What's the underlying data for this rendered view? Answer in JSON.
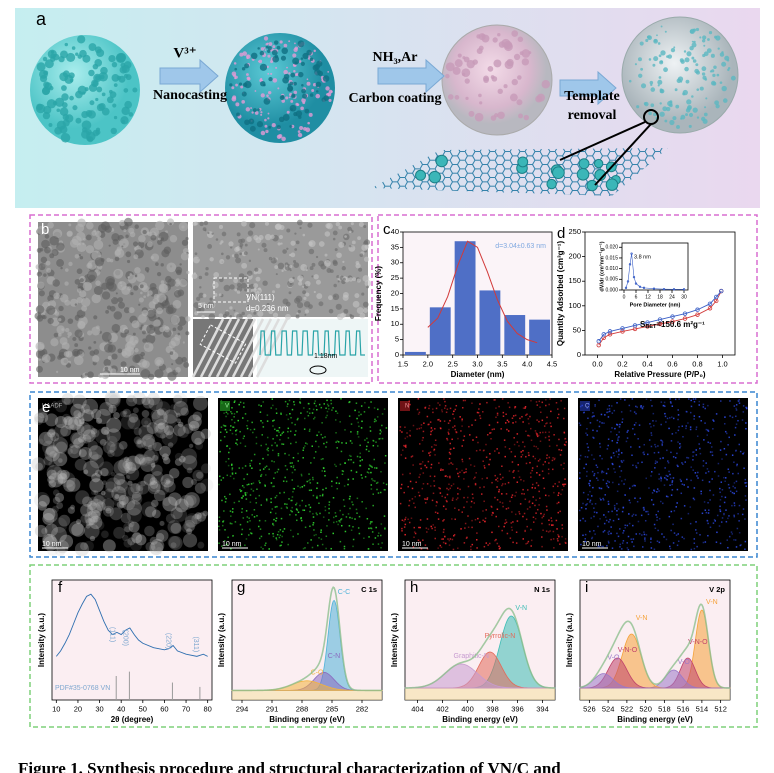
{
  "figure": {
    "scheme": {
      "label": "a",
      "step1_top": "V³⁺",
      "step1_bottom": "Nanocasting",
      "step2_top": "NH₃,Ar",
      "step2_bottom": "Carbon coating",
      "step3": [
        "Template",
        "removal"
      ]
    },
    "tem": {
      "label": "b",
      "scale_left": "10 nm",
      "scale_hr": "5 nm",
      "plane": "VN(111)",
      "d_spacing": "d=0.236 nm",
      "profile": "1.18nm"
    },
    "eds": {
      "label": "e",
      "maps": [
        {
          "title": "HAADF",
          "scale": "10 nm"
        },
        {
          "title": "V",
          "scale": "10 nm"
        },
        {
          "title": "N",
          "scale": "10 nm"
        },
        {
          "title": "C",
          "scale": "10 nm"
        }
      ]
    },
    "caption": "Figure 1. Synthesis procedure and structural characterization of VN/C and"
  },
  "chart_data": [
    {
      "type": "histogram",
      "label": "c",
      "xlabel": "Diameter (nm)",
      "ylabel": "Frequency (%)",
      "note": "d=3.04±0.63 nm",
      "color": "#4f6fc6",
      "bins": [
        1.5,
        2.0,
        2.5,
        3.0,
        3.5,
        4.0,
        4.5
      ],
      "values": [
        1,
        15.5,
        37,
        21,
        13,
        11.5
      ],
      "fit": {
        "color": "#d23a3a",
        "x": [
          2.0,
          2.2,
          2.4,
          2.6,
          2.8,
          3.0,
          3.2,
          3.4,
          3.6,
          3.8,
          4.0,
          4.2
        ],
        "values": [
          9,
          12,
          19,
          29,
          37,
          35,
          27,
          18,
          11,
          7,
          5,
          4
        ]
      },
      "xlim": [
        1.5,
        4.5
      ],
      "xticks": [
        1.5,
        {
          "value": 2,
          "label": "2.0"
        },
        2.5,
        {
          "value": 3,
          "label": "3.0"
        },
        3.5,
        {
          "value": 4,
          "label": "4.0"
        },
        4.5
      ],
      "ylim": [
        0,
        40
      ],
      "yticks": [
        0,
        5,
        10,
        15,
        20,
        25,
        30,
        35,
        40
      ]
    },
    {
      "type": "line",
      "label": "d",
      "xlabel": "Relative Pressure (P/P₀)",
      "ylabel": "Quantity Adsorbed (cm³g⁻¹)",
      "note": [
        "S",
        "BET",
        "=150.6 m²g⁻¹"
      ],
      "x": [
        0.01,
        0.05,
        0.1,
        0.2,
        0.3,
        0.4,
        0.5,
        0.6,
        0.7,
        0.8,
        0.9,
        0.95,
        0.99
      ],
      "series": [
        {
          "color": "#d23a3a",
          "values": [
            20,
            35,
            42,
            48,
            53,
            58,
            63,
            68,
            74,
            82,
            95,
            110,
            130
          ]
        },
        {
          "color": "#3a5fc6",
          "values": [
            28,
            42,
            48,
            54,
            60,
            66,
            72,
            78,
            84,
            92,
            104,
            118,
            130
          ]
        }
      ],
      "xlim": [
        -0.1,
        1.1
      ],
      "xticks": [
        {
          "value": 0,
          "label": "0.0"
        },
        0.2,
        0.4,
        0.6,
        0.8,
        {
          "value": 1,
          "label": "1.0"
        }
      ],
      "ylim": [
        0,
        250
      ],
      "yticks": [
        0,
        50,
        100,
        150,
        200,
        250
      ]
    },
    {
      "type": "line",
      "xlabel": "Pore Diameter (nm)",
      "ylabel": "dV/dr (cm³nm⁻¹g⁻¹)",
      "note": "3.8 nm",
      "x": [
        1,
        2,
        3,
        3.8,
        5,
        6,
        8,
        10,
        15,
        20,
        25,
        30
      ],
      "series": [
        {
          "color": "#3a5fc6",
          "values": [
            0.001,
            0.004,
            0.012,
            0.017,
            0.006,
            0.003,
            0.0015,
            0.001,
            0.0006,
            0.0004,
            0.0003,
            0.0003
          ]
        }
      ],
      "xlim": [
        -1,
        32
      ],
      "xticks": [
        0,
        6,
        12,
        18,
        24,
        30
      ],
      "ylim": [
        0,
        0.022
      ],
      "yticks": [
        {
          "value": 0,
          "label": "0.000"
        },
        {
          "value": 0.005,
          "label": "0.005"
        },
        {
          "value": 0.01,
          "label": "0.010"
        },
        {
          "value": 0.015,
          "label": "0.015"
        },
        {
          "value": 0.02,
          "label": "0.020"
        }
      ]
    },
    {
      "type": "line",
      "label": "f",
      "xlabel": "2θ (degree)",
      "ylabel": "Intensity (a.u.)",
      "note": "PDF#35-0768 VN",
      "x": [
        10,
        12,
        14,
        16,
        18,
        20,
        22,
        24,
        26,
        28,
        30,
        32,
        34,
        36,
        38,
        40,
        42,
        44,
        46,
        48,
        50,
        55,
        60,
        62,
        64,
        66,
        70,
        75,
        78,
        80
      ],
      "series": [
        {
          "color": "#2f6fb0",
          "values": [
            40,
            45,
            52,
            60,
            70,
            80,
            88,
            95,
            97,
            92,
            82,
            72,
            64,
            60,
            62,
            60,
            64,
            66,
            60,
            55,
            52,
            48,
            46,
            47,
            50,
            45,
            42,
            40,
            42,
            40
          ]
        }
      ],
      "references": {
        "color": "#9a9a9a",
        "x": [
          37.7,
          43.8,
          63.7,
          76.4
        ],
        "values": [
          22,
          26,
          16,
          12
        ],
        "labels": [
          "(111)",
          "(200)",
          "(220)",
          "(311)"
        ]
      },
      "xlim": [
        8,
        82
      ],
      "xticks": [
        10,
        20,
        30,
        40,
        50,
        60,
        70,
        80
      ],
      "ylim": [
        0,
        110
      ]
    },
    {
      "type": "xps",
      "label": "g",
      "title": "C 1s",
      "xlabel": "Binding energy (eV)",
      "ylabel": "Intensity (a.u.)",
      "background": 8,
      "peaks": [
        {
          "name": "C-C",
          "color": "#4fb3d9",
          "center": 284.8,
          "height": 75,
          "width": 0.6
        },
        {
          "name": "C-N",
          "color": "#8a6bbf",
          "center": 285.8,
          "height": 15,
          "width": 1.0
        },
        {
          "name": "C-O",
          "color": "#f2b33d",
          "center": 287.5,
          "height": 8,
          "width": 1.5
        }
      ],
      "xlim": [
        295,
        280
      ],
      "xticks": [
        294,
        291,
        288,
        285,
        282
      ],
      "ylim": [
        0,
        100
      ]
    },
    {
      "type": "xps",
      "label": "h",
      "title": "N 1s",
      "xlabel": "Binding energy (eV)",
      "ylabel": "Intensity (a.u.)",
      "background": 10,
      "peaks": [
        {
          "name": "V-N",
          "color": "#3dbdb5",
          "center": 396.5,
          "height": 60,
          "width": 0.9
        },
        {
          "name": "Pyrrolic-N",
          "color": "#e26a5a",
          "center": 398.2,
          "height": 30,
          "width": 0.9
        },
        {
          "name": "Graphitic-N",
          "color": "#c79bd0",
          "center": 400.5,
          "height": 20,
          "width": 1.3
        }
      ],
      "xlim": [
        405,
        393
      ],
      "xticks": [
        404,
        402,
        400,
        398,
        396,
        394
      ],
      "ylim": [
        0,
        100
      ]
    },
    {
      "type": "xps",
      "label": "i",
      "title": "V 2p",
      "xlabel": "Binding energy (eV)",
      "ylabel": "Intensity (a.u.)",
      "background": 10,
      "peaks": [
        {
          "name": "V-N",
          "color": "#f5a23a",
          "center": 514.0,
          "height": 65,
          "width": 0.7
        },
        {
          "name": "V-N-O",
          "color": "#c0436a",
          "center": 515.5,
          "height": 25,
          "width": 0.8
        },
        {
          "name": "V-O",
          "color": "#9a79c9",
          "center": 517.0,
          "height": 15,
          "width": 0.9
        },
        {
          "name": "V-N",
          "color": "#f5a23a",
          "center": 521.5,
          "height": 45,
          "width": 1.0
        },
        {
          "name": "V-N-O",
          "color": "#c0436a",
          "center": 523.0,
          "height": 25,
          "width": 1.0
        },
        {
          "name": "V-O",
          "color": "#9a79c9",
          "center": 524.5,
          "height": 12,
          "width": 1.0
        }
      ],
      "xlim": [
        527,
        511
      ],
      "xticks": [
        526,
        524,
        522,
        520,
        518,
        516,
        514,
        512
      ],
      "ylim": [
        0,
        100
      ]
    }
  ]
}
